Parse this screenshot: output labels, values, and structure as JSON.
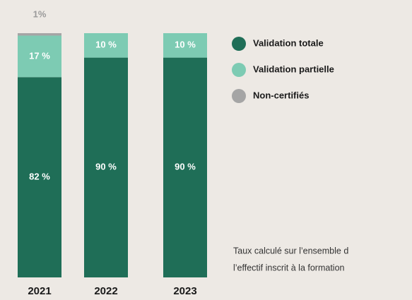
{
  "chart_data": {
    "type": "stacked-bar",
    "categories": [
      "2021",
      "2022",
      "2023"
    ],
    "series": [
      {
        "name": "Validation totale",
        "color": "#1f6e57",
        "values": [
          82,
          90,
          90
        ],
        "value_labels": [
          "82 %",
          "90 %",
          "90 %"
        ]
      },
      {
        "name": "Validation partielle",
        "color": "#7dcbb3",
        "values": [
          17,
          10,
          10
        ],
        "value_labels": [
          "17 %",
          "10 %",
          "10 %"
        ]
      },
      {
        "name": "Non-certifiés",
        "color": "#a5a5a5",
        "values": [
          1,
          0,
          0
        ],
        "value_labels": [
          "1%",
          null,
          null
        ]
      }
    ],
    "annotation": [
      "Taux calculé sur l’ensemble d",
      "l’effectif inscrit à la formation"
    ]
  }
}
